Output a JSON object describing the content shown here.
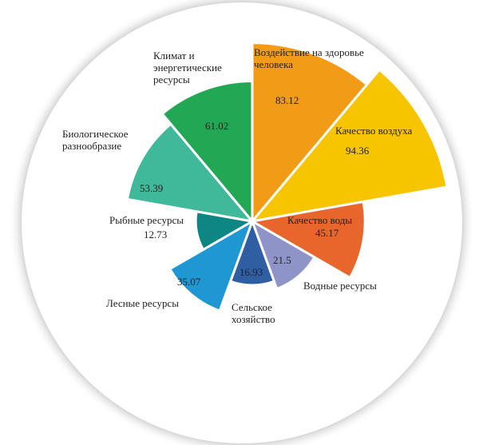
{
  "chart_data": {
    "type": "polar-area",
    "categories": [
      "Воздействие на здоровье человека",
      "Качество воздуха",
      "Качество воды",
      "Водные ресурсы",
      "Сельское хозяйство",
      "Лесные ресурсы",
      "Рыбные ресурсы",
      "Биологическое разнообразие",
      "Климат и энергетические ресурсы"
    ],
    "values": [
      83.12,
      94.36,
      45.17,
      21.5,
      16.93,
      35.07,
      12.73,
      53.39,
      61.02
    ],
    "colors": [
      "#f29b17",
      "#f6c500",
      "#e8652c",
      "#8e93c8",
      "#2f5fa2",
      "#1f97d3",
      "#0e8683",
      "#3fb99a",
      "#22a854"
    ],
    "rlim": [
      -20,
      100
    ]
  }
}
